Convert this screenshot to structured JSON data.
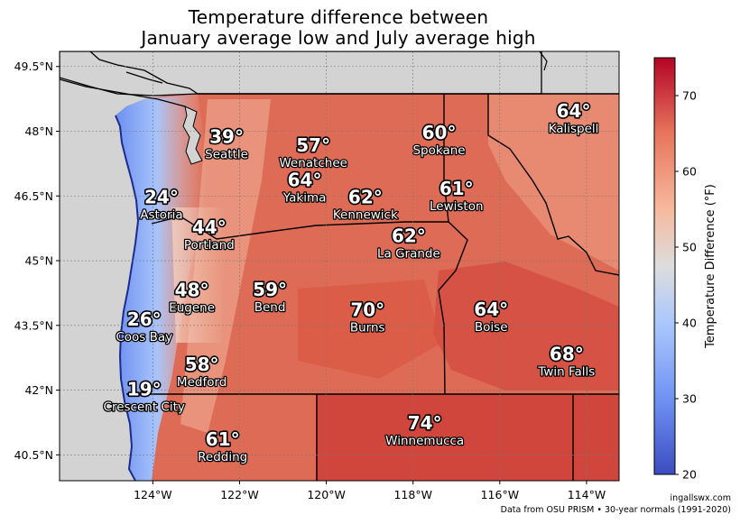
{
  "title": {
    "line1": "Temperature difference between",
    "line2": "January average low and July average high"
  },
  "colors": {
    "ocean": "#d3d3d3",
    "land_base": "#de6b55",
    "cool_coast": "#8aa8f0",
    "cold_end": "#3b4cc0",
    "neutral": "#dddddd",
    "warm_end": "#b40426",
    "border": "#000000"
  },
  "axes": {
    "y_ticks": [
      "49.5°N",
      "48°N",
      "46.5°N",
      "45°N",
      "43.5°N",
      "42°N",
      "40.5°N"
    ],
    "x_ticks": [
      "124°W",
      "122°W",
      "120°W",
      "118°W",
      "116°W",
      "114°W"
    ],
    "grid": true
  },
  "colorbar": {
    "label": "Temperature Difference (°F)",
    "min": 20,
    "max": 75,
    "ticks": [
      "20",
      "30",
      "40",
      "50",
      "60",
      "70"
    ]
  },
  "cities": [
    {
      "name": "Seattle",
      "value": "39°",
      "lon": -122.3,
      "lat": 47.6
    },
    {
      "name": "Wenatchee",
      "value": "57°",
      "lon": -120.3,
      "lat": 47.4
    },
    {
      "name": "Spokane",
      "value": "60°",
      "lon": -117.4,
      "lat": 47.7
    },
    {
      "name": "Kalispell",
      "value": "64°",
      "lon": -114.3,
      "lat": 48.2
    },
    {
      "name": "Astoria",
      "value": "24°",
      "lon": -123.8,
      "lat": 46.2
    },
    {
      "name": "Yakima",
      "value": "64°",
      "lon": -120.5,
      "lat": 46.6
    },
    {
      "name": "Kennewick",
      "value": "62°",
      "lon": -119.1,
      "lat": 46.2
    },
    {
      "name": "Lewiston",
      "value": "61°",
      "lon": -117.0,
      "lat": 46.4
    },
    {
      "name": "Portland",
      "value": "44°",
      "lon": -122.7,
      "lat": 45.5
    },
    {
      "name": "La Grande",
      "value": "62°",
      "lon": -118.1,
      "lat": 45.3
    },
    {
      "name": "Eugene",
      "value": "48°",
      "lon": -123.1,
      "lat": 44.05
    },
    {
      "name": "Bend",
      "value": "59°",
      "lon": -121.3,
      "lat": 44.06
    },
    {
      "name": "Boise",
      "value": "64°",
      "lon": -116.2,
      "lat": 43.6
    },
    {
      "name": "Coos Bay",
      "value": "26°",
      "lon": -124.2,
      "lat": 43.37
    },
    {
      "name": "Burns",
      "value": "70°",
      "lon": -119.05,
      "lat": 43.59
    },
    {
      "name": "Twin Falls",
      "value": "68°",
      "lon": -114.46,
      "lat": 42.56
    },
    {
      "name": "Medford",
      "value": "58°",
      "lon": -122.87,
      "lat": 42.33
    },
    {
      "name": "Crescent City",
      "value": "19°",
      "lon": -124.2,
      "lat": 41.75
    },
    {
      "name": "Winnemucca",
      "value": "74°",
      "lon": -117.73,
      "lat": 40.97
    },
    {
      "name": "Redding",
      "value": "61°",
      "lon": -122.39,
      "lat": 40.59
    }
  ],
  "credit": {
    "line1": "ingallswx.com",
    "line2": "Data from OSU PRISM • 30-year normals (1991-2020)"
  }
}
